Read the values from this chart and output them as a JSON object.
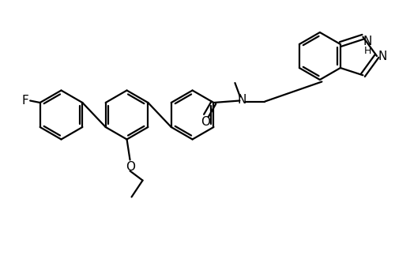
{
  "background_color": "#ffffff",
  "line_color": "#000000",
  "line_width": 1.6,
  "figsize": [
    5.0,
    3.23
  ],
  "dpi": 100,
  "xlim": [
    0,
    10
  ],
  "ylim": [
    0,
    6.46
  ]
}
